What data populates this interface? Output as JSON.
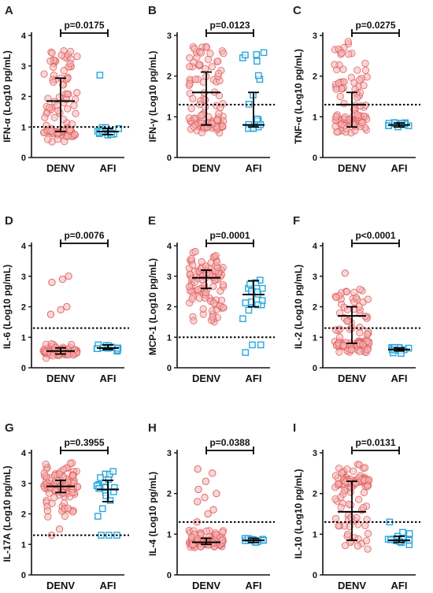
{
  "colors": {
    "denv": "#e05a5a",
    "denv_fill": "#f4b6b6",
    "afi": "#2aa7dd",
    "afi_fill": "#bfe6f6",
    "axis": "#111111"
  },
  "chart_data": [
    {
      "panel": "A",
      "type": "scatter",
      "ylabel": "IFN-α (Log10 pg/mL)",
      "categories": [
        "DENV",
        "AFI"
      ],
      "ylim": [
        0,
        4
      ],
      "yticks": [
        0,
        1,
        2,
        3,
        4
      ],
      "threshold": 1.0,
      "pvalue": "p=0.0175",
      "series": [
        {
          "name": "DENV",
          "median": 1.85,
          "q1": 0.85,
          "q3": 2.6,
          "n": 110,
          "lo": 0.5,
          "hi": 3.5,
          "cluster_frac": 0.35,
          "cluster_at": 0.85,
          "cluster_sd": 0.1
        },
        {
          "name": "AFI",
          "median": 0.85,
          "q1": 0.75,
          "q3": 0.95,
          "n": 14,
          "lo": 0.7,
          "hi": 1.0,
          "cluster_frac": 0.85,
          "cluster_at": 0.85,
          "cluster_sd": 0.08,
          "outliers": [
            2.7
          ]
        }
      ]
    },
    {
      "panel": "B",
      "type": "scatter",
      "ylabel": "IFN-γ (Log10 pg/mL)",
      "categories": [
        "DENV",
        "AFI"
      ],
      "ylim": [
        0,
        3
      ],
      "yticks": [
        0,
        1,
        2,
        3
      ],
      "threshold": 1.3,
      "pvalue": "p=0.0123",
      "series": [
        {
          "name": "DENV",
          "median": 1.6,
          "q1": 0.8,
          "q3": 2.1,
          "n": 110,
          "lo": 0.6,
          "hi": 2.8,
          "cluster_frac": 0.4,
          "cluster_at": 0.8,
          "cluster_sd": 0.08
        },
        {
          "name": "AFI",
          "median": 0.8,
          "q1": 0.75,
          "q3": 1.6,
          "n": 18,
          "lo": 0.6,
          "hi": 2.6,
          "cluster_frac": 0.45,
          "cluster_at": 0.8,
          "cluster_sd": 0.08
        }
      ]
    },
    {
      "panel": "C",
      "type": "scatter",
      "ylabel": "TNF-α (Log10 pg/mL)",
      "categories": [
        "DENV",
        "AFI"
      ],
      "ylim": [
        0,
        3
      ],
      "yticks": [
        0,
        1,
        2,
        3
      ],
      "threshold": 1.3,
      "pvalue": "p=0.0275",
      "series": [
        {
          "name": "DENV",
          "median": 1.3,
          "q1": 0.75,
          "q3": 1.6,
          "n": 100,
          "lo": 0.6,
          "hi": 2.9,
          "cluster_frac": 0.3,
          "cluster_at": 0.9,
          "cluster_sd": 0.1
        },
        {
          "name": "AFI",
          "median": 0.8,
          "q1": 0.75,
          "q3": 0.85,
          "n": 12,
          "lo": 0.7,
          "hi": 0.9,
          "cluster_frac": 0.9,
          "cluster_at": 0.8,
          "cluster_sd": 0.05
        }
      ]
    },
    {
      "panel": "D",
      "type": "scatter",
      "ylabel": "IL-6 (Log10 pg/mL)",
      "categories": [
        "DENV",
        "AFI"
      ],
      "ylim": [
        0,
        4
      ],
      "yticks": [
        0,
        1,
        2,
        3,
        4
      ],
      "threshold": 1.3,
      "pvalue": "p=0.0076",
      "series": [
        {
          "name": "DENV",
          "median": 0.55,
          "q1": 0.45,
          "q3": 0.65,
          "n": 90,
          "lo": 0.35,
          "hi": 0.8,
          "cluster_frac": 0.9,
          "cluster_at": 0.55,
          "cluster_sd": 0.07,
          "outliers": [
            1.75,
            1.9,
            2.0,
            2.8,
            2.9,
            3.0
          ]
        },
        {
          "name": "AFI",
          "median": 0.65,
          "q1": 0.6,
          "q3": 0.75,
          "n": 14,
          "lo": 0.55,
          "hi": 0.8,
          "cluster_frac": 0.9,
          "cluster_at": 0.65,
          "cluster_sd": 0.05
        }
      ]
    },
    {
      "panel": "E",
      "type": "scatter",
      "ylabel": "MCP-1 (Log10 pg/mL)",
      "categories": [
        "DENV",
        "AFI"
      ],
      "ylim": [
        0,
        4
      ],
      "yticks": [
        0,
        1,
        2,
        3,
        4
      ],
      "threshold": 1.0,
      "pvalue": "p=0.0001",
      "series": [
        {
          "name": "DENV",
          "median": 2.95,
          "q1": 2.6,
          "q3": 3.2,
          "n": 110,
          "lo": 1.5,
          "hi": 3.9,
          "cluster_frac": 0.4,
          "cluster_at": 2.95,
          "cluster_sd": 0.25
        },
        {
          "name": "AFI",
          "median": 2.4,
          "q1": 2.0,
          "q3": 2.85,
          "n": 16,
          "lo": 1.6,
          "hi": 3.2,
          "cluster_frac": 0.2,
          "cluster_at": 2.4,
          "cluster_sd": 0.3,
          "outliers": [
            0.5,
            0.75,
            0.75
          ]
        }
      ]
    },
    {
      "panel": "F",
      "type": "scatter",
      "ylabel": "IL-2 (Log10 pg/mL)",
      "categories": [
        "DENV",
        "AFI"
      ],
      "ylim": [
        0,
        4
      ],
      "yticks": [
        0,
        1,
        2,
        3,
        4
      ],
      "threshold": 1.3,
      "pvalue": "p<0.0001",
      "series": [
        {
          "name": "DENV",
          "median": 1.7,
          "q1": 0.8,
          "q3": 2.0,
          "n": 110,
          "lo": 0.5,
          "hi": 2.6,
          "cluster_frac": 0.45,
          "cluster_at": 0.75,
          "cluster_sd": 0.08,
          "outliers": [
            3.1
          ]
        },
        {
          "name": "AFI",
          "median": 0.6,
          "q1": 0.55,
          "q3": 0.65,
          "n": 12,
          "lo": 0.45,
          "hi": 0.7,
          "cluster_frac": 0.9,
          "cluster_at": 0.6,
          "cluster_sd": 0.05
        }
      ]
    },
    {
      "panel": "G",
      "type": "scatter",
      "ylabel": "IL-17A (Log10 pg/mL)",
      "categories": [
        "DENV",
        "AFI"
      ],
      "ylim": [
        0,
        4
      ],
      "yticks": [
        0,
        1,
        2,
        3,
        4
      ],
      "threshold": 1.3,
      "pvalue": "p=0.3955",
      "series": [
        {
          "name": "DENV",
          "median": 2.9,
          "q1": 2.7,
          "q3": 3.1,
          "n": 110,
          "lo": 1.9,
          "hi": 3.7,
          "cluster_frac": 0.5,
          "cluster_at": 2.9,
          "cluster_sd": 0.15,
          "outliers": [
            1.3,
            1.5
          ]
        },
        {
          "name": "AFI",
          "median": 2.8,
          "q1": 2.4,
          "q3": 3.1,
          "n": 18,
          "lo": 1.9,
          "hi": 3.4,
          "cluster_frac": 0.3,
          "cluster_at": 2.9,
          "cluster_sd": 0.2,
          "outliers": [
            1.3,
            1.3,
            1.3
          ]
        }
      ]
    },
    {
      "panel": "H",
      "type": "scatter",
      "ylabel": "IL-4 (Log10 pg/mL)",
      "categories": [
        "DENV",
        "AFI"
      ],
      "ylim": [
        0,
        3
      ],
      "yticks": [
        0,
        1,
        2,
        3
      ],
      "threshold": 1.3,
      "pvalue": "p=0.0388",
      "series": [
        {
          "name": "DENV",
          "median": 0.8,
          "q1": 0.75,
          "q3": 0.9,
          "n": 100,
          "lo": 0.7,
          "hi": 1.1,
          "cluster_frac": 0.7,
          "cluster_at": 0.8,
          "cluster_sd": 0.06,
          "outliers": [
            1.3,
            1.5,
            1.6,
            1.8,
            1.9,
            2.0,
            2.1,
            2.3,
            2.5,
            2.6
          ]
        },
        {
          "name": "AFI",
          "median": 0.85,
          "q1": 0.8,
          "q3": 0.9,
          "n": 14,
          "lo": 0.75,
          "hi": 0.95,
          "cluster_frac": 0.9,
          "cluster_at": 0.85,
          "cluster_sd": 0.04
        }
      ]
    },
    {
      "panel": "I",
      "type": "scatter",
      "ylabel": "IL-10 (Log10 pg/mL)",
      "categories": [
        "DENV",
        "AFI"
      ],
      "ylim": [
        0,
        3
      ],
      "yticks": [
        0,
        1,
        2,
        3
      ],
      "threshold": 1.3,
      "pvalue": "p=0.0131",
      "series": [
        {
          "name": "DENV",
          "median": 1.55,
          "q1": 0.85,
          "q3": 2.3,
          "n": 110,
          "lo": 0.6,
          "hi": 2.8,
          "cluster_frac": 0.45,
          "cluster_at": 2.3,
          "cluster_sd": 0.08
        },
        {
          "name": "AFI",
          "median": 0.85,
          "q1": 0.8,
          "q3": 0.95,
          "n": 14,
          "lo": 0.7,
          "hi": 1.1,
          "cluster_frac": 0.85,
          "cluster_at": 0.85,
          "cluster_sd": 0.06,
          "outliers": [
            1.3
          ]
        }
      ]
    }
  ]
}
